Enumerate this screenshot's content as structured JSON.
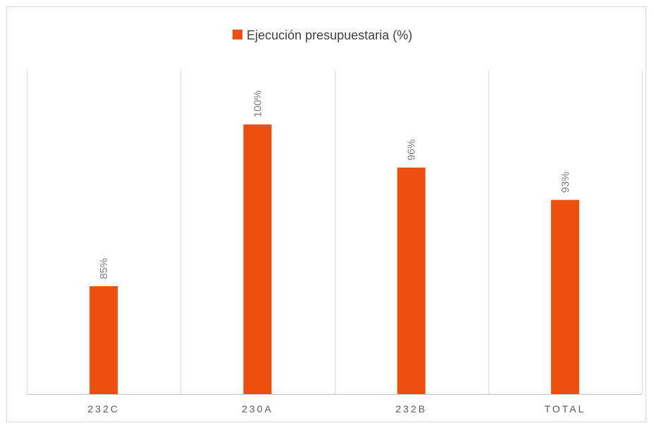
{
  "chart_data": {
    "type": "bar",
    "categories": [
      "232C",
      "230A",
      "232B",
      "TOTAL"
    ],
    "series": [
      {
        "name": "Ejecución presupuestaria (%)",
        "values": [
          85,
          100,
          96,
          93
        ],
        "color": "#ec500c"
      }
    ],
    "data_labels": [
      "85%",
      "100%",
      "96%",
      "93%"
    ],
    "ylim": [
      75,
      105
    ],
    "grid": "vertical-category-separators",
    "legend_position": "top",
    "axis_color": "#bfbfbf",
    "grid_color": "#d9d9d9",
    "label_color": "#595959",
    "data_label_color": "#7f7f7f"
  }
}
